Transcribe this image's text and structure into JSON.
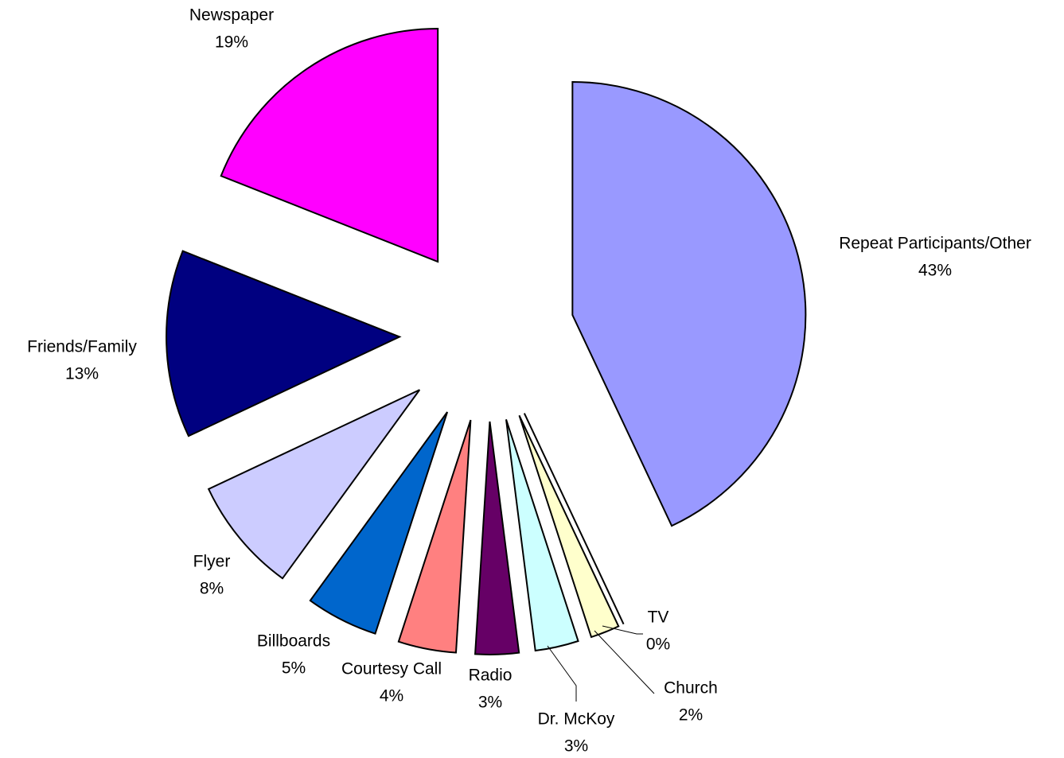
{
  "chart_data": {
    "type": "pie",
    "categories": [
      "Repeat Participants/Other",
      "TV",
      "Church",
      "Dr. McKoy",
      "Radio",
      "Courtesy Call",
      "Billboards",
      "Flyer",
      "Friends/Family",
      "Newspaper"
    ],
    "values": [
      43,
      0,
      2,
      3,
      3,
      4,
      5,
      8,
      13,
      19
    ],
    "value_labels": [
      "43%",
      "0%",
      "2%",
      "3%",
      "3%",
      "4%",
      "5%",
      "8%",
      "13%",
      "19%"
    ],
    "colors": [
      "#9999ff",
      "#ffffff",
      "#ffffcc",
      "#ccffff",
      "#660066",
      "#ff8080",
      "#0066cc",
      "#ccccff",
      "#000080",
      "#ff00ff"
    ],
    "exploded": true
  }
}
